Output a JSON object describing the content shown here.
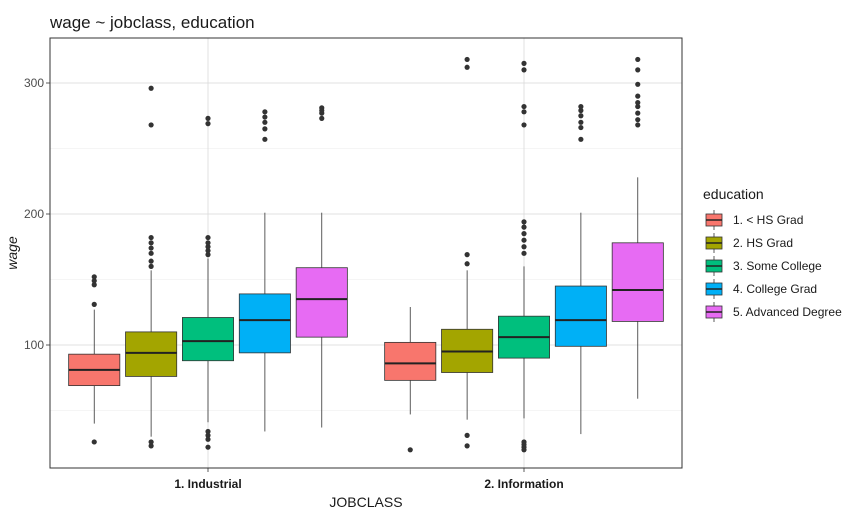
{
  "chart_data": {
    "type": "box",
    "title": "wage ~ jobclass, education",
    "xlabel": "JOBCLASS",
    "ylabel": "wage",
    "categories": [
      "1. Industrial",
      "2. Information"
    ],
    "ylim": [
      10,
      328
    ],
    "yticks": [
      100,
      200,
      300
    ],
    "grid": true,
    "legend": {
      "title": "education",
      "position": "right"
    },
    "series": [
      {
        "name": "1. < HS Grad",
        "color": "#F8766D",
        "boxes": [
          {
            "lower_whisker": 40,
            "q1": 69,
            "median": 81,
            "q3": 93,
            "upper_whisker": 127,
            "outliers": [
              26,
              131,
              146,
              149,
              152
            ]
          },
          {
            "lower_whisker": 47,
            "q1": 73,
            "median": 86,
            "q3": 102,
            "upper_whisker": 129,
            "outliers": [
              20
            ]
          }
        ]
      },
      {
        "name": "2. HS Grad",
        "color": "#A3A500",
        "boxes": [
          {
            "lower_whisker": 30,
            "q1": 76,
            "median": 94,
            "q3": 110,
            "upper_whisker": 157,
            "outliers": [
              23,
              26,
              160,
              164,
              170,
              174,
              178,
              182,
              268,
              296
            ]
          },
          {
            "lower_whisker": 43,
            "q1": 79,
            "median": 95,
            "q3": 112,
            "upper_whisker": 157,
            "outliers": [
              23,
              31,
              162,
              169,
              312,
              318
            ]
          }
        ]
      },
      {
        "name": "3. Some College",
        "color": "#00BF7D",
        "boxes": [
          {
            "lower_whisker": 41,
            "q1": 88,
            "median": 103,
            "q3": 121,
            "upper_whisker": 166,
            "outliers": [
              22,
              28,
              31,
              34,
              169,
              172,
              175,
              178,
              182,
              269,
              273
            ]
          },
          {
            "lower_whisker": 44,
            "q1": 90,
            "median": 106,
            "q3": 122,
            "upper_whisker": 160,
            "outliers": [
              20,
              22,
              24,
              26,
              170,
              175,
              180,
              185,
              190,
              194,
              268,
              278,
              282,
              310,
              315
            ]
          }
        ]
      },
      {
        "name": "4. College Grad",
        "color": "#00B0F6",
        "boxes": [
          {
            "lower_whisker": 34,
            "q1": 94,
            "median": 119,
            "q3": 139,
            "upper_whisker": 201,
            "outliers": [
              257,
              265,
              270,
              274,
              278
            ]
          },
          {
            "lower_whisker": 32,
            "q1": 99,
            "median": 119,
            "q3": 145,
            "upper_whisker": 201,
            "outliers": [
              257,
              266,
              270,
              275,
              279,
              282
            ]
          }
        ]
      },
      {
        "name": "5. Advanced Degree",
        "color": "#E76BF3",
        "boxes": [
          {
            "lower_whisker": 37,
            "q1": 106,
            "median": 135,
            "q3": 159,
            "upper_whisker": 201,
            "outliers": [
              273,
              277,
              279,
              281
            ]
          },
          {
            "lower_whisker": 59,
            "q1": 118,
            "median": 142,
            "q3": 178,
            "upper_whisker": 228,
            "outliers": [
              268,
              272,
              277,
              282,
              285,
              290,
              299,
              310,
              318
            ]
          }
        ]
      }
    ]
  }
}
